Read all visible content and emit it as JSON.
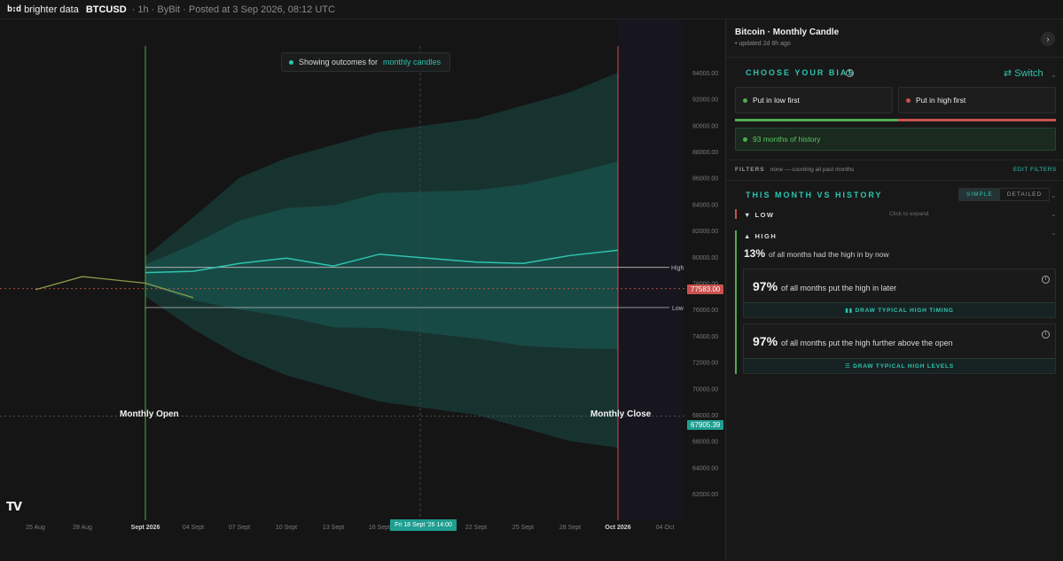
{
  "topbar": {
    "logo_mark": "b:d",
    "logo_text": "brighter data",
    "symbol": "BTCUSD",
    "meta": "· 1h · ByBit · Posted at 3 Sep 2026, 08:12 UTC"
  },
  "chart": {
    "banner_prefix": "Showing outcomes for",
    "banner_highlight": "monthly candles",
    "monthly_open_label": "Monthly Open",
    "monthly_close_label": "Monthly Close",
    "high_label": "High",
    "low_label": "Low",
    "current_price_tag": "77583.00",
    "lower_price_tag": "67905.39",
    "crosshair_date": "Fri 18 Sept '26 14:00",
    "watermark": "TV",
    "colors": {
      "band": "#1f9e91",
      "line": "#2ec4b0",
      "open_line": "#4cae4f",
      "close_line": "#c9514e",
      "price_tag_red": "#c9514e",
      "price_tag_teal": "#1f9e91"
    }
  },
  "chart_data": {
    "type": "line",
    "title": "",
    "xlabel": "",
    "ylabel": "",
    "ylim": [
      61000,
      95000
    ],
    "y_ticks": [
      "94000.00",
      "92000.00",
      "90000.00",
      "88000.00",
      "86000.00",
      "84000.00",
      "82000.00",
      "80000.00",
      "78000.00",
      "76000.00",
      "74000.00",
      "72000.00",
      "70000.00",
      "68000.00",
      "66000.00",
      "64000.00",
      "62000.00"
    ],
    "x_ticks": [
      "25 Aug",
      "28 Aug",
      "Sept 2026",
      "04 Sept",
      "07 Sept",
      "10 Sept",
      "13 Sept",
      "16 Sept",
      "22 Sept",
      "25 Sept",
      "28 Sept",
      "Oct 2026",
      "04 Oct"
    ],
    "monthly_open_date": "Sept 2026",
    "monthly_close_date": "Oct 2026",
    "high_level": 79200,
    "low_level": 76150,
    "current_price": 77583.0,
    "marked_price": 67905.39,
    "series": [
      {
        "x": [
          "25 Aug",
          "28 Aug",
          "Sept 2026",
          "04 Sept"
        ],
        "values": [
          77500,
          78500,
          78000,
          76900
        ]
      },
      {
        "x": [
          "Sept 2026",
          "04 Sept",
          "07 Sept",
          "10 Sept",
          "13 Sept",
          "16 Sept",
          "22 Sept",
          "25 Sept",
          "28 Sept",
          "Oct 2026"
        ],
        "values": [
          78800,
          78900,
          79500,
          79900,
          79300,
          80200,
          79600,
          79500,
          80100,
          80500
        ]
      },
      {
        "x": [
          "Sept 2026",
          "04 Sept",
          "07 Sept",
          "10 Sept",
          "13 Sept",
          "16 Sept",
          "22 Sept",
          "25 Sept",
          "28 Sept",
          "Oct 2026"
        ],
        "values": [
          80000,
          83000,
          86000,
          87500,
          88500,
          89500,
          90500,
          91500,
          92500,
          94000
        ]
      },
      {
        "x": [
          "Sept 2026",
          "04 Sept",
          "07 Sept",
          "10 Sept",
          "13 Sept",
          "16 Sept",
          "22 Sept",
          "25 Sept",
          "28 Sept",
          "Oct 2026"
        ],
        "values": [
          77000,
          74500,
          72500,
          71000,
          70000,
          69000,
          68000,
          67000,
          66000,
          65500
        ]
      }
    ]
  },
  "panel": {
    "title": "Bitcoin · Monthly Candle",
    "subtitle": "• updated 2d 8h ago",
    "expand_icon": "chevron-right-icon",
    "bias_title": "CHOOSE YOUR BIAS",
    "switch_label": "⇄ Switch",
    "bias_low": "Put in low first",
    "bias_high": "Put in high first",
    "history": "93 months of history",
    "filters_label": "FILTERS",
    "filters_value": "none — counting all past months",
    "edit_filters": "EDIT FILTERS",
    "compare_title": "THIS MONTH VS HISTORY",
    "seg_simple": "SIMPLE",
    "seg_detailed": "DETAILED",
    "low_row": "▼  LOW",
    "low_hint": "Click to expand",
    "high_row": "▲  HIGH",
    "stat_pct": "13%",
    "stat_text": "of all months had the high in by now",
    "card1_pct": "97%",
    "card1_text": "of all months put the high in later",
    "card1_action": "DRAW TYPICAL HIGH TIMING",
    "card2_pct": "97%",
    "card2_text": "of all months put the high further above the open",
    "card2_action": "DRAW TYPICAL HIGH LEVELS"
  }
}
